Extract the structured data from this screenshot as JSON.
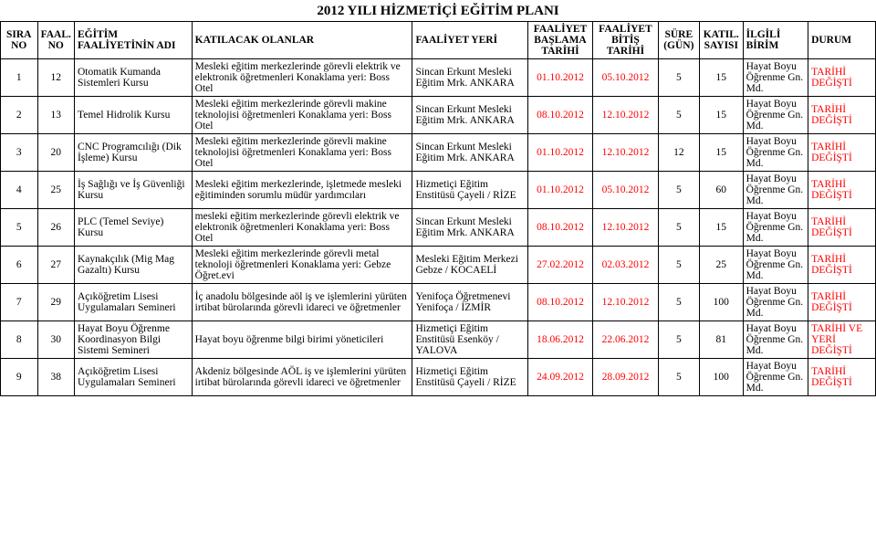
{
  "title": "2012 YILI HİZMETİÇİ EĞİTİM PLANI",
  "headers": {
    "sira": "SIRA NO",
    "faal": "FAAL. NO",
    "adi": "EĞİTİM FAALİYETİNİN ADI",
    "olanlar": "KATILACAK OLANLAR",
    "yeri": "FAALİYET YERİ",
    "baslama": "FAALİYET BAŞLAMA TARİHİ",
    "bitis": "FAALİYET BİTİŞ TARİHİ",
    "sure": "SÜRE (GÜN)",
    "katil": "KATIL. SAYISI",
    "birim": "İLGİLİ BİRİM",
    "durum": "DURUM"
  },
  "rows": [
    {
      "sira": "1",
      "faal": "12",
      "adi": "Otomatik Kumanda Sistemleri Kursu",
      "olanlar": "Mesleki eğitim merkezlerinde görevli elektrik ve elektronik öğretmenleri Konaklama yeri: Boss Otel",
      "yeri": "Sincan Erkunt Mesleki Eğitim Mrk. ANKARA",
      "baslama": "01.10.2012",
      "bitis": "05.10.2012",
      "sure": "5",
      "katil": "15",
      "birim": "Hayat Boyu Öğrenme Gn. Md.",
      "durum": "TARİHİ DEĞİŞTİ"
    },
    {
      "sira": "2",
      "faal": "13",
      "adi": "Temel Hidrolik Kursu",
      "olanlar": "Mesleki eğitim merkezlerinde görevli makine teknolojisi öğretmenleri Konaklama yeri: Boss Otel",
      "yeri": "Sincan Erkunt Mesleki Eğitim Mrk. ANKARA",
      "baslama": "08.10.2012",
      "bitis": "12.10.2012",
      "sure": "5",
      "katil": "15",
      "birim": "Hayat Boyu Öğrenme Gn. Md.",
      "durum": "TARİHİ DEĞİŞTİ"
    },
    {
      "sira": "3",
      "faal": "20",
      "adi": "CNC Programcılığı (Dik İşleme) Kursu",
      "olanlar": "Mesleki eğitim merkezlerinde görevli makine teknolojisi öğretmenleri Konaklama yeri: Boss Otel",
      "yeri": "Sincan Erkunt Mesleki Eğitim Mrk. ANKARA",
      "baslama": "01.10.2012",
      "bitis": "12.10.2012",
      "sure": "12",
      "katil": "15",
      "birim": "Hayat Boyu Öğrenme Gn. Md.",
      "durum": "TARİHİ DEĞİŞTİ"
    },
    {
      "sira": "4",
      "faal": "25",
      "adi": "İş Sağlığı ve İş Güvenliği Kursu",
      "olanlar": "Mesleki eğitim merkezlerinde, işletmede mesleki eğitiminden sorumlu müdür yardımcıları",
      "yeri": "Hizmetiçi Eğitim Enstitüsü Çayeli / RİZE",
      "baslama": "01.10.2012",
      "bitis": "05.10.2012",
      "sure": "5",
      "katil": "60",
      "birim": "Hayat Boyu Öğrenme Gn. Md.",
      "durum": "TARİHİ DEĞİŞTİ"
    },
    {
      "sira": "5",
      "faal": "26",
      "adi": "PLC (Temel Seviye) Kursu",
      "olanlar": "mesleki eğitim merkezlerinde görevli elektrik ve elektronik öğretmenleri Konaklama yeri: Boss Otel",
      "yeri": "Sincan Erkunt Mesleki Eğitim Mrk. ANKARA",
      "baslama": "08.10.2012",
      "bitis": "12.10.2012",
      "sure": "5",
      "katil": "15",
      "birim": "Hayat Boyu Öğrenme Gn. Md.",
      "durum": "TARİHİ DEĞİŞTİ"
    },
    {
      "sira": "6",
      "faal": "27",
      "adi": "Kaynakçılık (Mig Mag Gazaltı) Kursu",
      "olanlar": "Mesleki eğitim merkezlerinde görevli metal teknoloji öğretmenleri Konaklama yeri: Gebze Öğret.evi",
      "yeri": "Mesleki Eğitim Merkezi  Gebze / KOCAELİ",
      "baslama": "27.02.2012",
      "bitis": "02.03.2012",
      "sure": "5",
      "katil": "25",
      "birim": "Hayat Boyu Öğrenme Gn. Md.",
      "durum": "TARİHİ DEĞİŞTİ"
    },
    {
      "sira": "7",
      "faal": "29",
      "adi": "Açıköğretim Lisesi Uygulamaları Semineri",
      "olanlar": "İç anadolu bölgesinde aöl  iş ve işlemlerini yürüten irtibat bürolarında görevli idareci ve öğretmenler",
      "yeri": "Yenifoça Öğretmenevi Yenifoça / İZMİR",
      "baslama": "08.10.2012",
      "bitis": "12.10.2012",
      "sure": "5",
      "katil": "100",
      "birim": "Hayat Boyu Öğrenme Gn. Md.",
      "durum": "TARİHİ DEĞİŞTİ"
    },
    {
      "sira": "8",
      "faal": "30",
      "adi": "Hayat Boyu Öğrenme Koordinasyon Bilgi Sistemi  Semineri",
      "olanlar": "Hayat boyu öğrenme bilgi birimi yöneticileri",
      "yeri": "Hizmetiçi Eğitim Enstitüsü Esenköy / YALOVA",
      "baslama": "18.06.2012",
      "bitis": "22.06.2012",
      "sure": "5",
      "katil": "81",
      "birim": "Hayat Boyu Öğrenme Gn. Md.",
      "durum": "TARİHİ VE YERİ DEĞİŞTİ"
    },
    {
      "sira": "9",
      "faal": "38",
      "adi": "Açıköğretim Lisesi Uygulamaları Semineri",
      "olanlar": "Akdeniz bölgesinde AÖL  iş ve işlemlerini yürüten irtibat bürolarında görevli idareci ve öğretmenler",
      "yeri": "Hizmetiçi Eğitim Enstitüsü Çayeli / RİZE",
      "baslama": "24.09.2012",
      "bitis": "28.09.2012",
      "sure": "5",
      "katil": "100",
      "birim": "Hayat Boyu Öğrenme Gn. Md.",
      "durum": "TARİHİ DEĞİŞTİ"
    }
  ],
  "colors": {
    "red": "#ff0000",
    "black": "#000000",
    "bg": "#ffffff"
  }
}
